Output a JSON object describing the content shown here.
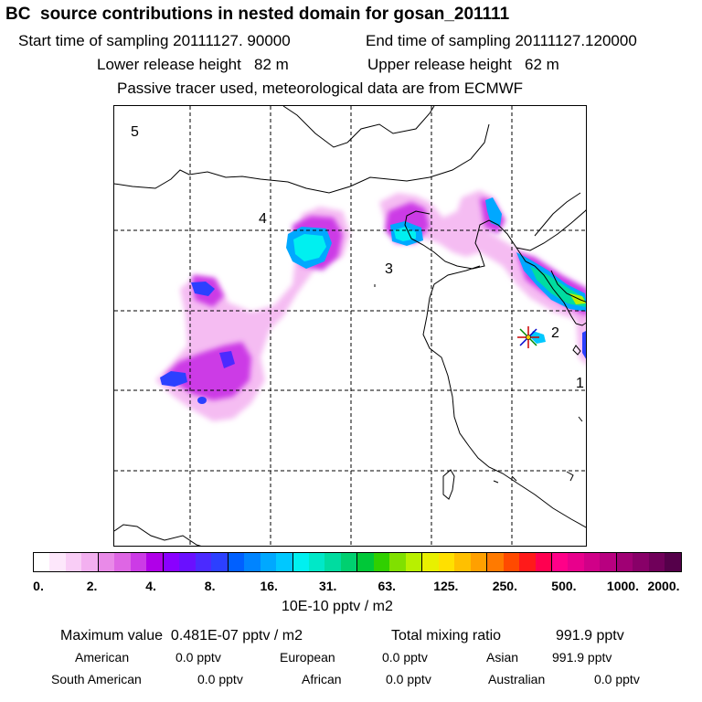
{
  "header": {
    "title": "BC  source contributions in nested domain for gosan_201111",
    "start_time": "Start time of sampling 20111127. 90000",
    "end_time": "End time of sampling 20111127.120000",
    "lower_release": "Lower release height   82 m",
    "upper_release": "Upper release height   62 m",
    "tracer_note": "Passive tracer used, meteorological data are from ECMWF"
  },
  "map": {
    "region_labels": [
      "5",
      "4",
      "3",
      "2",
      "1"
    ],
    "receptor_marker": "star-icon"
  },
  "colorbar": {
    "tick_labels": [
      "0.",
      "2.",
      "4.",
      "8.",
      "16.",
      "31.",
      "63.",
      "125.",
      "250.",
      "500.",
      "1000.",
      "2000."
    ],
    "colors": [
      "#ffffff",
      "#fde7fb",
      "#f9cdf6",
      "#f3b0f0",
      "#e98ae8",
      "#de66e4",
      "#cc3be6",
      "#b000e8",
      "#8a00ff",
      "#6a10ff",
      "#4b2aff",
      "#2c40ff",
      "#0060ff",
      "#0084ff",
      "#00a8ff",
      "#00c8ff",
      "#00f0f0",
      "#00e8c8",
      "#00dca0",
      "#00d070",
      "#00c838",
      "#30d000",
      "#80e000",
      "#b8f000",
      "#e8f000",
      "#ffe000",
      "#ffc000",
      "#ffa000",
      "#ff7a00",
      "#ff4a00",
      "#ff1a1a",
      "#ff0050",
      "#ff0088",
      "#e8008c",
      "#d00088",
      "#b80080",
      "#a00074",
      "#880068",
      "#70005a",
      "#55004a"
    ],
    "units": "10E-10 pptv / m2"
  },
  "summary": {
    "max_value": "Maximum value  0.481E-07 pptv / m2",
    "total_label": "Total mixing ratio",
    "total_value": "991.9 pptv",
    "contributions": [
      {
        "label": "American",
        "value": "0.0 pptv"
      },
      {
        "label": "European",
        "value": "0.0 pptv"
      },
      {
        "label": "Asian",
        "value": "991.9 pptv"
      },
      {
        "label": "South American",
        "value": "0.0 pptv"
      },
      {
        "label": "African",
        "value": "0.0 pptv"
      },
      {
        "label": "Australian",
        "value": "0.0 pptv"
      }
    ]
  }
}
